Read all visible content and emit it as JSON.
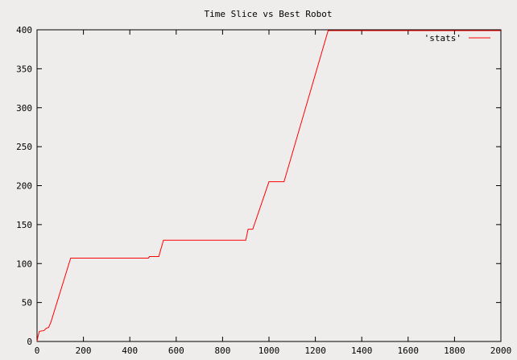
{
  "chart_data": {
    "type": "line",
    "title": "Time Slice vs Best Robot",
    "xlabel": "",
    "ylabel": "",
    "xlim": [
      0,
      2000
    ],
    "ylim": [
      0,
      400
    ],
    "xticks": [
      0,
      200,
      400,
      600,
      800,
      1000,
      1200,
      1400,
      1600,
      1800,
      2000
    ],
    "yticks": [
      0,
      50,
      100,
      150,
      200,
      250,
      300,
      350,
      400
    ],
    "grid": false,
    "legend_position": "top-right",
    "series": [
      {
        "name": "'stats'",
        "color": "#ff0000",
        "points": [
          [
            0,
            0
          ],
          [
            3,
            5
          ],
          [
            10,
            13
          ],
          [
            30,
            14
          ],
          [
            40,
            17
          ],
          [
            50,
            18
          ],
          [
            60,
            25
          ],
          [
            145,
            107
          ],
          [
            480,
            107
          ],
          [
            485,
            109
          ],
          [
            525,
            109
          ],
          [
            545,
            130
          ],
          [
            900,
            130
          ],
          [
            910,
            144
          ],
          [
            930,
            144
          ],
          [
            1000,
            205
          ],
          [
            1065,
            205
          ],
          [
            1255,
            399
          ],
          [
            2000,
            399
          ]
        ]
      }
    ]
  }
}
